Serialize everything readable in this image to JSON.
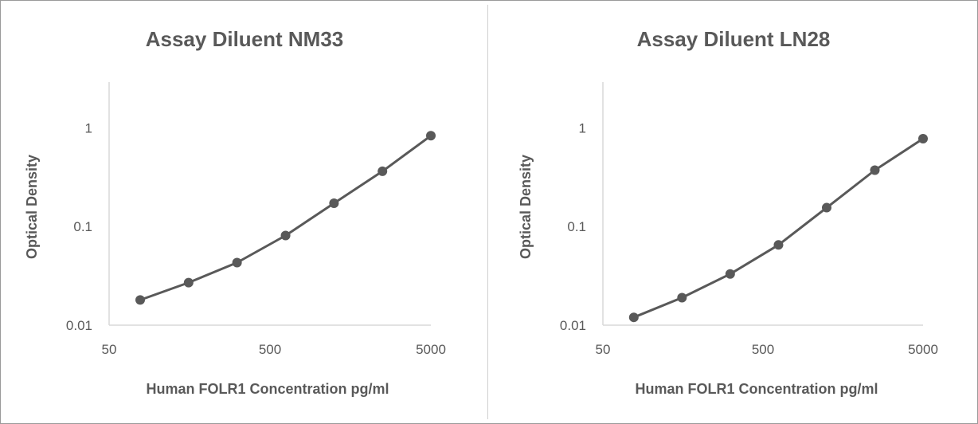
{
  "chart_data": [
    {
      "type": "line",
      "title": "Assay Diluent NM33",
      "xlabel": "Human FOLR1 Concentration pg/ml",
      "ylabel": "Optical Density",
      "x_scale": "log",
      "y_scale": "log",
      "xlim": [
        50,
        5000
      ],
      "ylim": [
        0.01,
        2.9
      ],
      "x_ticks": [
        "50",
        "500",
        "5000"
      ],
      "y_ticks": [
        "1",
        "0.1",
        "0.01"
      ],
      "grid": false,
      "series": [
        {
          "x": [
            78,
            156,
            312,
            625,
            1250,
            2500,
            5000
          ],
          "y": [
            0.018,
            0.027,
            0.043,
            0.081,
            0.172,
            0.362,
            0.83
          ]
        }
      ],
      "colors": {
        "line": "#595959",
        "marker": "#595959",
        "axis": "#d9d9d9"
      }
    },
    {
      "type": "line",
      "title": "Assay Diluent LN28",
      "xlabel": "Human FOLR1 Concentration pg/ml",
      "ylabel": "Optical Density",
      "x_scale": "log",
      "y_scale": "log",
      "xlim": [
        50,
        5000
      ],
      "ylim": [
        0.01,
        2.9
      ],
      "x_ticks": [
        "50",
        "500",
        "5000"
      ],
      "y_ticks": [
        "1",
        "0.1",
        "0.01"
      ],
      "grid": false,
      "series": [
        {
          "x": [
            78,
            156,
            312,
            625,
            1250,
            2500,
            5000
          ],
          "y": [
            0.012,
            0.019,
            0.033,
            0.065,
            0.155,
            0.372,
            0.775
          ]
        }
      ],
      "colors": {
        "line": "#595959",
        "marker": "#595959",
        "axis": "#d9d9d9"
      }
    }
  ]
}
